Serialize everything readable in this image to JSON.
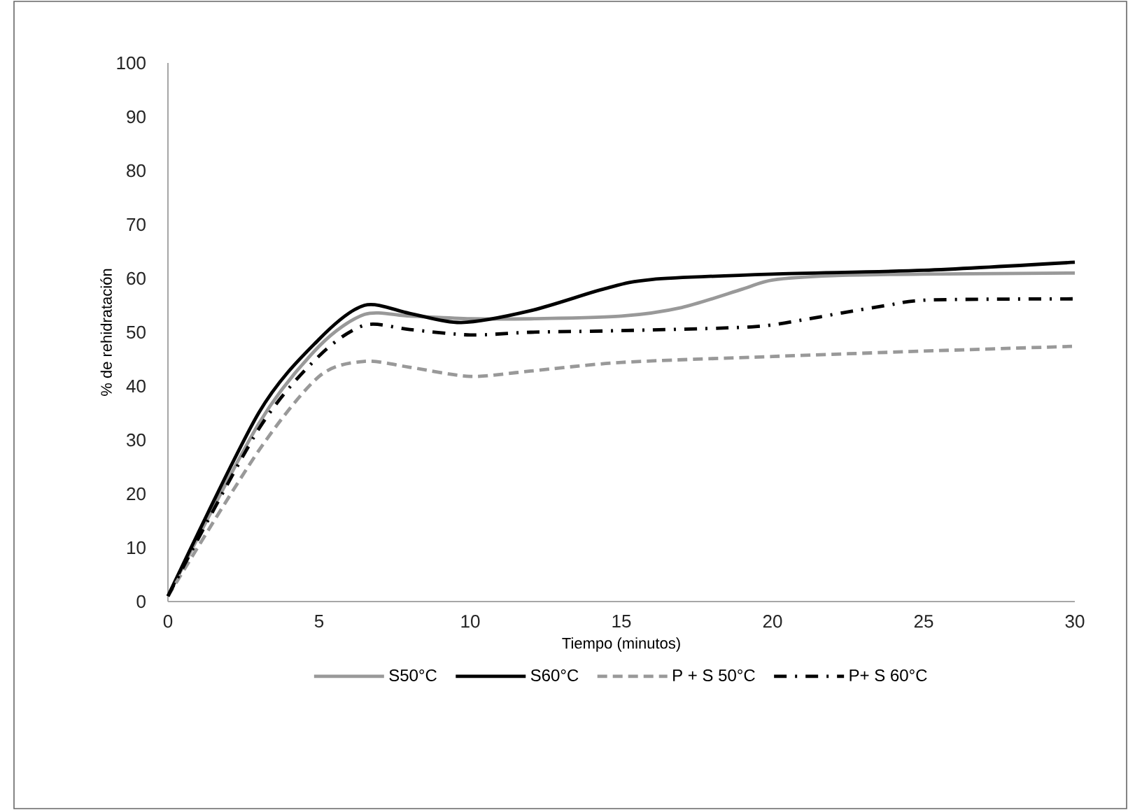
{
  "chart_data": {
    "type": "line",
    "xlabel": "Tiempo (minutos)",
    "ylabel": "% de rehidratación",
    "xlim": [
      0,
      30
    ],
    "xticks": [
      0,
      5,
      10,
      15,
      20,
      25,
      30
    ],
    "ylim": [
      0,
      100
    ],
    "yticks": [
      0,
      10,
      20,
      30,
      40,
      50,
      60,
      70,
      80,
      90,
      100
    ],
    "grid": false,
    "legend": "bottom",
    "marker": "none",
    "series": [
      {
        "name": "S50°C",
        "color": "#999999",
        "line_style": "solid",
        "x": [
          0,
          3,
          5,
          6.5,
          8,
          10,
          12,
          15,
          17,
          19,
          20,
          22,
          25,
          30
        ],
        "values": [
          1,
          33,
          47.4,
          53.3,
          53,
          52.5,
          52.5,
          53,
          54.6,
          58,
          59.7,
          60.5,
          60.8,
          61
        ]
      },
      {
        "name": "S60°C",
        "color": "#000000",
        "line_style": "solid",
        "x": [
          0,
          3,
          5,
          6.5,
          8,
          9.7,
          12,
          14.4,
          16,
          20,
          25,
          30
        ],
        "values": [
          1,
          35,
          48.7,
          55,
          53.5,
          51.8,
          54,
          58,
          59.8,
          60.8,
          61.5,
          63
        ]
      },
      {
        "name": "P + S 50°C",
        "color": "#999999",
        "line_style": "dashed",
        "x": [
          0,
          3,
          5,
          6.5,
          8,
          10,
          12,
          15,
          20,
          25,
          30
        ],
        "values": [
          1,
          28,
          41.8,
          44.6,
          43.5,
          41.8,
          42.8,
          44.4,
          45.5,
          46.5,
          47.4
        ]
      },
      {
        "name": "P+ S 60°C",
        "color": "#000000",
        "line_style": "dashdot",
        "x": [
          0,
          3,
          5,
          6.5,
          8,
          10,
          12,
          15,
          19.3,
          21,
          22.3,
          23.8,
          25.2,
          30
        ],
        "values": [
          1,
          32,
          45.6,
          51.3,
          50.5,
          49.5,
          50,
          50.3,
          51,
          52.3,
          53.6,
          55,
          56,
          56.2
        ]
      }
    ]
  }
}
